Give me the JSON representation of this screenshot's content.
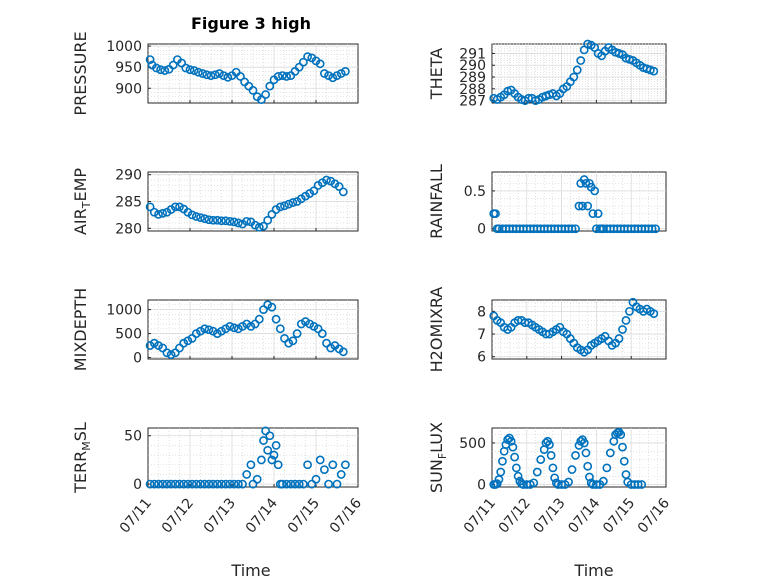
{
  "title": "Figure 3 high",
  "xlabel": "Time",
  "x_ticks": [
    "07/11",
    "07/12",
    "07/13",
    "07/14",
    "07/15",
    "07/16"
  ],
  "chart_data": [
    {
      "type": "scatter",
      "name": "pressure",
      "ylabel": "PRESSURE",
      "xlim": [
        0,
        5
      ],
      "ylim": [
        865,
        1005
      ],
      "yticks": [
        900,
        950,
        1000
      ],
      "x": [
        0.05,
        0.1,
        0.2,
        0.3,
        0.4,
        0.5,
        0.6,
        0.7,
        0.8,
        0.9,
        1.0,
        1.1,
        1.2,
        1.3,
        1.4,
        1.5,
        1.6,
        1.7,
        1.8,
        1.9,
        2.0,
        2.1,
        2.2,
        2.3,
        2.4,
        2.5,
        2.6,
        2.7,
        2.8,
        2.9,
        3.0,
        3.1,
        3.2,
        3.3,
        3.4,
        3.5,
        3.6,
        3.7,
        3.8,
        3.9,
        4.0,
        4.1,
        4.2,
        4.3,
        4.4,
        4.5,
        4.6,
        4.7
      ],
      "y": [
        968,
        955,
        948,
        944,
        942,
        945,
        955,
        968,
        960,
        948,
        944,
        942,
        938,
        935,
        932,
        930,
        932,
        935,
        930,
        926,
        930,
        938,
        928,
        915,
        905,
        895,
        880,
        873,
        885,
        905,
        920,
        928,
        930,
        928,
        930,
        940,
        950,
        962,
        975,
        972,
        965,
        958,
        935,
        930,
        925,
        930,
        935,
        940
      ]
    },
    {
      "type": "scatter",
      "name": "theta",
      "ylabel": "THETA",
      "xlim": [
        0,
        5
      ],
      "ylim": [
        286.8,
        291.8
      ],
      "yticks": [
        287,
        288,
        289,
        290,
        291
      ],
      "x": [
        0.05,
        0.15,
        0.25,
        0.35,
        0.45,
        0.55,
        0.65,
        0.75,
        0.85,
        0.95,
        1.05,
        1.15,
        1.25,
        1.35,
        1.45,
        1.55,
        1.65,
        1.75,
        1.85,
        1.95,
        2.05,
        2.15,
        2.25,
        2.35,
        2.45,
        2.55,
        2.65,
        2.75,
        2.85,
        2.95,
        3.05,
        3.15,
        3.25,
        3.35,
        3.45,
        3.55,
        3.65,
        3.75,
        3.85,
        3.95,
        4.05,
        4.15,
        4.25,
        4.35,
        4.45,
        4.55,
        4.65
      ],
      "y": [
        287.2,
        287.1,
        287.3,
        287.5,
        287.8,
        287.9,
        287.6,
        287.3,
        287.1,
        287.0,
        287.2,
        287.2,
        287.0,
        287.1,
        287.3,
        287.4,
        287.5,
        287.6,
        287.4,
        287.6,
        288.0,
        288.2,
        288.6,
        289.0,
        289.6,
        290.4,
        291.3,
        291.8,
        291.7,
        291.5,
        291.0,
        290.8,
        291.2,
        291.5,
        291.3,
        291.1,
        291.0,
        290.9,
        290.6,
        290.5,
        290.4,
        290.2,
        290.0,
        289.8,
        289.7,
        289.6,
        289.5
      ]
    },
    {
      "type": "scatter",
      "name": "airtemp",
      "ylabel": "AIR_TEMP",
      "xlim": [
        0,
        5
      ],
      "ylim": [
        279.5,
        290.5
      ],
      "yticks": [
        280,
        285,
        290
      ],
      "x": [
        0.05,
        0.15,
        0.25,
        0.35,
        0.45,
        0.55,
        0.65,
        0.75,
        0.85,
        0.95,
        1.05,
        1.15,
        1.25,
        1.35,
        1.45,
        1.55,
        1.65,
        1.75,
        1.85,
        1.95,
        2.05,
        2.15,
        2.25,
        2.35,
        2.45,
        2.55,
        2.65,
        2.75,
        2.85,
        2.95,
        3.05,
        3.15,
        3.25,
        3.35,
        3.45,
        3.55,
        3.65,
        3.75,
        3.85,
        3.95,
        4.05,
        4.15,
        4.25,
        4.35,
        4.45,
        4.55,
        4.65
      ],
      "y": [
        284,
        283,
        282.6,
        282.8,
        283,
        283.5,
        284,
        284,
        283.6,
        283,
        282.5,
        282.2,
        282,
        281.8,
        281.6,
        281.5,
        281.5,
        281.4,
        281.4,
        281.3,
        281.2,
        281,
        280.8,
        281.3,
        281.2,
        280.6,
        280.2,
        280.4,
        281.5,
        282.6,
        283.5,
        284,
        284.2,
        284.5,
        284.8,
        285,
        285.5,
        286,
        286.5,
        287,
        288,
        288.5,
        289,
        288.8,
        288.3,
        287.8,
        286.8
      ]
    },
    {
      "type": "scatter",
      "name": "rainfall",
      "ylabel": "RAINFALL",
      "xlim": [
        0,
        5
      ],
      "ylim": [
        -0.03,
        0.75
      ],
      "yticks": [
        0,
        0.5
      ],
      "x": [
        0.05,
        0.1,
        0.15,
        0.2,
        0.3,
        0.4,
        0.5,
        0.6,
        0.7,
        0.8,
        0.9,
        1.0,
        1.1,
        1.2,
        1.3,
        1.4,
        1.5,
        1.6,
        1.7,
        1.8,
        1.9,
        2.0,
        2.1,
        2.2,
        2.3,
        2.4,
        2.5,
        2.55,
        2.6,
        2.65,
        2.7,
        2.75,
        2.8,
        2.85,
        2.9,
        2.95,
        3.0,
        3.05,
        3.1,
        3.15,
        3.2,
        3.3,
        3.4,
        3.5,
        3.6,
        3.7,
        3.8,
        3.9,
        4.0,
        4.1,
        4.2,
        4.3,
        4.4,
        4.5,
        4.6,
        4.7
      ],
      "y": [
        0.2,
        0.2,
        0,
        0,
        0,
        0,
        0,
        0,
        0,
        0,
        0,
        0,
        0,
        0,
        0,
        0,
        0,
        0,
        0,
        0,
        0,
        0,
        0,
        0,
        0,
        0,
        0.3,
        0.6,
        0.3,
        0.65,
        0.6,
        0.3,
        0.6,
        0.55,
        0.2,
        0.5,
        0,
        0.2,
        0,
        0,
        0,
        0,
        0,
        0,
        0,
        0,
        0,
        0,
        0,
        0,
        0,
        0,
        0,
        0,
        0,
        0
      ]
    },
    {
      "type": "scatter",
      "name": "mixdepth",
      "ylabel": "MIXDEPTH",
      "xlim": [
        0,
        5
      ],
      "ylim": [
        -30,
        1200
      ],
      "yticks": [
        0,
        500,
        1000
      ],
      "x": [
        0.05,
        0.15,
        0.25,
        0.35,
        0.45,
        0.55,
        0.65,
        0.75,
        0.85,
        0.95,
        1.05,
        1.15,
        1.25,
        1.35,
        1.45,
        1.55,
        1.65,
        1.75,
        1.85,
        1.95,
        2.05,
        2.15,
        2.25,
        2.35,
        2.45,
        2.55,
        2.65,
        2.75,
        2.85,
        2.95,
        3.05,
        3.15,
        3.25,
        3.35,
        3.45,
        3.55,
        3.65,
        3.75,
        3.85,
        3.95,
        4.05,
        4.15,
        4.25,
        4.35,
        4.45,
        4.55,
        4.65
      ],
      "y": [
        250,
        300,
        250,
        200,
        100,
        60,
        100,
        200,
        300,
        350,
        400,
        500,
        550,
        600,
        580,
        550,
        500,
        550,
        600,
        650,
        620,
        600,
        650,
        700,
        650,
        700,
        800,
        1000,
        1100,
        1050,
        800,
        600,
        400,
        300,
        350,
        500,
        700,
        750,
        700,
        650,
        600,
        500,
        300,
        200,
        250,
        180,
        120
      ]
    },
    {
      "type": "scatter",
      "name": "h2omixra",
      "ylabel": "H2OMIXRA",
      "xlim": [
        0,
        5
      ],
      "ylim": [
        5.9,
        8.5
      ],
      "yticks": [
        6,
        7,
        8
      ],
      "x": [
        0.05,
        0.15,
        0.25,
        0.35,
        0.45,
        0.55,
        0.65,
        0.75,
        0.85,
        0.95,
        1.05,
        1.15,
        1.25,
        1.35,
        1.45,
        1.55,
        1.65,
        1.75,
        1.85,
        1.95,
        2.05,
        2.15,
        2.25,
        2.35,
        2.45,
        2.55,
        2.65,
        2.75,
        2.85,
        2.95,
        3.05,
        3.15,
        3.25,
        3.35,
        3.45,
        3.55,
        3.65,
        3.75,
        3.85,
        3.95,
        4.05,
        4.15,
        4.25,
        4.35,
        4.45,
        4.55,
        4.65
      ],
      "y": [
        7.8,
        7.6,
        7.5,
        7.3,
        7.2,
        7.3,
        7.5,
        7.6,
        7.6,
        7.5,
        7.5,
        7.4,
        7.3,
        7.2,
        7.1,
        7.0,
        7.0,
        7.1,
        7.2,
        7.3,
        7.1,
        7.0,
        6.8,
        6.6,
        6.4,
        6.3,
        6.2,
        6.3,
        6.5,
        6.6,
        6.7,
        6.8,
        6.9,
        6.7,
        6.5,
        6.6,
        6.8,
        7.2,
        7.6,
        8.0,
        8.4,
        8.2,
        8.1,
        8.0,
        8.1,
        8.0,
        7.9
      ]
    },
    {
      "type": "scatter",
      "name": "terrmsl",
      "ylabel": "TERR_MSL",
      "xlim": [
        0,
        5
      ],
      "ylim": [
        -3,
        58
      ],
      "yticks": [
        0,
        50
      ],
      "x": [
        0.05,
        0.15,
        0.25,
        0.35,
        0.45,
        0.55,
        0.65,
        0.75,
        0.85,
        0.95,
        1.05,
        1.15,
        1.25,
        1.35,
        1.45,
        1.55,
        1.65,
        1.75,
        1.85,
        1.95,
        2.05,
        2.15,
        2.25,
        2.35,
        2.45,
        2.5,
        2.6,
        2.7,
        2.75,
        2.8,
        2.85,
        2.9,
        2.95,
        3.0,
        3.05,
        3.1,
        3.15,
        3.2,
        3.3,
        3.4,
        3.5,
        3.6,
        3.7,
        3.8,
        3.9,
        4.0,
        4.1,
        4.2,
        4.3,
        4.4,
        4.5,
        4.6,
        4.7
      ],
      "y": [
        0,
        0,
        0,
        0,
        0,
        0,
        0,
        0,
        0,
        0,
        0,
        0,
        0,
        0,
        0,
        0,
        0,
        0,
        0,
        0,
        0,
        0,
        0,
        10,
        20,
        0,
        5,
        25,
        45,
        55,
        35,
        50,
        25,
        30,
        40,
        20,
        0,
        0,
        0,
        0,
        0,
        0,
        0,
        20,
        0,
        5,
        25,
        15,
        0,
        20,
        0,
        10,
        20
      ]
    },
    {
      "type": "scatter",
      "name": "sunflux",
      "ylabel": "SUN_FLUX",
      "xlim": [
        0,
        5
      ],
      "ylim": [
        -30,
        680
      ],
      "yticks": [
        0,
        500
      ],
      "x": [
        0.05,
        0.1,
        0.15,
        0.2,
        0.25,
        0.3,
        0.35,
        0.4,
        0.45,
        0.5,
        0.55,
        0.6,
        0.65,
        0.7,
        0.75,
        0.8,
        0.85,
        0.9,
        1.0,
        1.1,
        1.2,
        1.3,
        1.4,
        1.5,
        1.55,
        1.6,
        1.65,
        1.7,
        1.75,
        1.8,
        1.85,
        1.9,
        2.0,
        2.1,
        2.2,
        2.3,
        2.4,
        2.5,
        2.55,
        2.6,
        2.65,
        2.7,
        2.75,
        2.8,
        2.85,
        2.9,
        3.0,
        3.1,
        3.2,
        3.3,
        3.4,
        3.5,
        3.55,
        3.6,
        3.65,
        3.7,
        3.75,
        3.8,
        3.85,
        3.9,
        4.0,
        4.1,
        4.2,
        4.3
      ],
      "y": [
        0,
        0,
        10,
        60,
        150,
        280,
        400,
        480,
        540,
        560,
        520,
        450,
        330,
        200,
        100,
        40,
        10,
        0,
        0,
        0,
        20,
        150,
        300,
        420,
        500,
        520,
        480,
        350,
        200,
        80,
        20,
        0,
        0,
        0,
        30,
        180,
        350,
        470,
        520,
        540,
        500,
        380,
        220,
        90,
        20,
        0,
        0,
        0,
        40,
        200,
        380,
        520,
        600,
        620,
        630,
        600,
        450,
        280,
        120,
        30,
        0,
        0,
        0,
        0
      ]
    }
  ]
}
